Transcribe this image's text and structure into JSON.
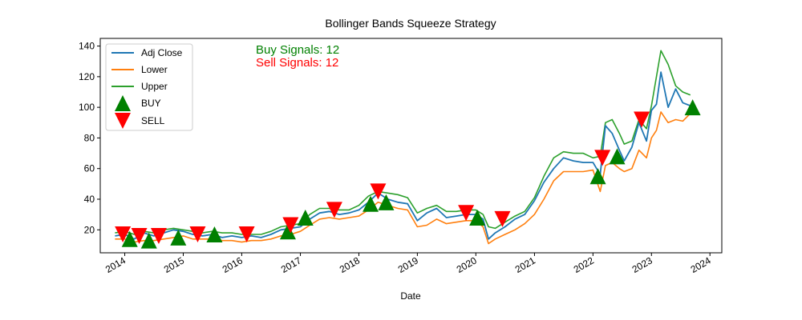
{
  "chart_data": {
    "type": "line",
    "title": "Bollinger Bands Squeeze Strategy",
    "xlabel": "Date",
    "ylabel": "",
    "xlim": [
      "2013-08-01",
      "2024-03-15"
    ],
    "ylim": [
      5,
      145
    ],
    "grid": false,
    "legend_position": "upper-left",
    "x_ticks": [
      "2014",
      "2015",
      "2016",
      "2017",
      "2018",
      "2019",
      "2020",
      "2021",
      "2022",
      "2023",
      "2024"
    ],
    "y_ticks": [
      20,
      40,
      60,
      80,
      100,
      120,
      140
    ],
    "colors": {
      "adj_close": "#1f77b4",
      "lower": "#ff7f0e",
      "upper": "#2ca02c",
      "buy": "#008000",
      "sell": "#ff0000"
    },
    "annotations": {
      "buy_text": "Buy Signals: 12",
      "sell_text": "Sell Signals: 12"
    },
    "legend": [
      "Adj Close",
      "Lower",
      "Upper",
      "BUY",
      "SELL"
    ],
    "series": [
      {
        "name": "Adj Close",
        "x": [
          "2013-11-01",
          "2014-01-01",
          "2014-03-01",
          "2014-05-01",
          "2014-07-01",
          "2014-09-01",
          "2014-11-01",
          "2015-01-01",
          "2015-03-01",
          "2015-05-01",
          "2015-07-01",
          "2015-09-01",
          "2015-11-01",
          "2016-01-01",
          "2016-03-01",
          "2016-05-01",
          "2016-07-01",
          "2016-09-01",
          "2016-11-01",
          "2017-01-01",
          "2017-03-01",
          "2017-05-01",
          "2017-07-01",
          "2017-09-01",
          "2017-11-01",
          "2018-01-01",
          "2018-03-01",
          "2018-05-01",
          "2018-07-01",
          "2018-09-01",
          "2018-11-01",
          "2019-01-01",
          "2019-03-01",
          "2019-05-01",
          "2019-07-01",
          "2019-09-01",
          "2019-11-01",
          "2020-01-01",
          "2020-02-15",
          "2020-03-20",
          "2020-05-01",
          "2020-07-01",
          "2020-09-01",
          "2020-11-01",
          "2021-01-01",
          "2021-03-01",
          "2021-05-01",
          "2021-07-01",
          "2021-09-01",
          "2021-11-01",
          "2022-01-01",
          "2022-02-15",
          "2022-03-20",
          "2022-05-01",
          "2022-06-15",
          "2022-07-15",
          "2022-09-01",
          "2022-10-15",
          "2022-12-01",
          "2023-01-01",
          "2023-02-01",
          "2023-03-01",
          "2023-04-15",
          "2023-06-01",
          "2023-07-15",
          "2023-09-01"
        ],
        "values": [
          16,
          17,
          14,
          18,
          16,
          18,
          20,
          19,
          17,
          16,
          17,
          15,
          16,
          15,
          16,
          15,
          17,
          20,
          21,
          22,
          27,
          31,
          32,
          30,
          31,
          33,
          38,
          44,
          40,
          38,
          37,
          26,
          31,
          34,
          28,
          29,
          30,
          30,
          27,
          14,
          18,
          22,
          27,
          30,
          39,
          51,
          60,
          67,
          65,
          64,
          64,
          56,
          88,
          83,
          72,
          65,
          74,
          90,
          78,
          98,
          102,
          123,
          100,
          112,
          103,
          101
        ]
      },
      {
        "name": "Lower",
        "x": [
          "2013-11-01",
          "2014-01-01",
          "2014-03-01",
          "2014-05-01",
          "2014-07-01",
          "2014-09-01",
          "2014-11-01",
          "2015-01-01",
          "2015-03-01",
          "2015-05-01",
          "2015-07-01",
          "2015-09-01",
          "2015-11-01",
          "2016-01-01",
          "2016-03-01",
          "2016-05-01",
          "2016-07-01",
          "2016-09-01",
          "2016-11-01",
          "2017-01-01",
          "2017-03-01",
          "2017-05-01",
          "2017-07-01",
          "2017-09-01",
          "2017-11-01",
          "2018-01-01",
          "2018-03-01",
          "2018-05-01",
          "2018-07-01",
          "2018-09-01",
          "2018-11-01",
          "2019-01-01",
          "2019-03-01",
          "2019-05-01",
          "2019-07-01",
          "2019-09-01",
          "2019-11-01",
          "2020-01-01",
          "2020-02-15",
          "2020-03-20",
          "2020-05-01",
          "2020-07-01",
          "2020-09-01",
          "2020-11-01",
          "2021-01-01",
          "2021-03-01",
          "2021-05-01",
          "2021-07-01",
          "2021-09-01",
          "2021-11-01",
          "2022-01-01",
          "2022-02-15",
          "2022-03-20",
          "2022-05-01",
          "2022-06-15",
          "2022-07-15",
          "2022-09-01",
          "2022-10-15",
          "2022-12-01",
          "2023-01-01",
          "2023-02-01",
          "2023-03-01",
          "2023-04-15",
          "2023-06-01",
          "2023-07-15",
          "2023-09-01"
        ],
        "values": [
          14,
          14,
          12,
          13,
          13,
          14,
          15,
          16,
          14,
          14,
          14,
          13,
          13,
          12,
          13,
          13,
          14,
          16,
          17,
          19,
          23,
          27,
          28,
          27,
          28,
          29,
          33,
          38,
          36,
          34,
          33,
          22,
          23,
          27,
          24,
          25,
          26,
          26,
          22,
          11,
          14,
          17,
          20,
          24,
          30,
          40,
          52,
          58,
          58,
          58,
          59,
          45,
          62,
          64,
          60,
          58,
          60,
          72,
          67,
          80,
          85,
          97,
          90,
          92,
          91,
          96
        ]
      },
      {
        "name": "Upper",
        "x": [
          "2013-11-01",
          "2014-01-01",
          "2014-03-01",
          "2014-05-01",
          "2014-07-01",
          "2014-09-01",
          "2014-11-01",
          "2015-01-01",
          "2015-03-01",
          "2015-05-01",
          "2015-07-01",
          "2015-09-01",
          "2015-11-01",
          "2016-01-01",
          "2016-03-01",
          "2016-05-01",
          "2016-07-01",
          "2016-09-01",
          "2016-11-01",
          "2017-01-01",
          "2017-03-01",
          "2017-05-01",
          "2017-07-01",
          "2017-09-01",
          "2017-11-01",
          "2018-01-01",
          "2018-03-01",
          "2018-05-01",
          "2018-07-01",
          "2018-09-01",
          "2018-11-01",
          "2019-01-01",
          "2019-03-01",
          "2019-05-01",
          "2019-07-01",
          "2019-09-01",
          "2019-11-01",
          "2020-01-01",
          "2020-02-15",
          "2020-03-20",
          "2020-05-01",
          "2020-07-01",
          "2020-09-01",
          "2020-11-01",
          "2021-01-01",
          "2021-03-01",
          "2021-05-01",
          "2021-07-01",
          "2021-09-01",
          "2021-11-01",
          "2022-01-01",
          "2022-02-15",
          "2022-03-20",
          "2022-05-01",
          "2022-06-15",
          "2022-07-15",
          "2022-09-01",
          "2022-10-15",
          "2022-12-01",
          "2023-01-01",
          "2023-02-01",
          "2023-03-01",
          "2023-04-15",
          "2023-06-01",
          "2023-07-15",
          "2023-09-01"
        ],
        "values": [
          18,
          19,
          17,
          19,
          18,
          20,
          21,
          20,
          19,
          18,
          19,
          18,
          18,
          17,
          17,
          17,
          19,
          22,
          23,
          24,
          30,
          34,
          34,
          33,
          33,
          36,
          42,
          45,
          44,
          43,
          41,
          31,
          34,
          36,
          32,
          32,
          33,
          33,
          30,
          22,
          21,
          25,
          29,
          32,
          41,
          55,
          67,
          71,
          70,
          70,
          67,
          68,
          90,
          92,
          83,
          76,
          78,
          92,
          86,
          101,
          120,
          137,
          128,
          114,
          110,
          108
        ]
      }
    ],
    "buy_signals": {
      "x": [
        "2014-02-01",
        "2014-06-01",
        "2014-12-01",
        "2015-07-15",
        "2016-10-15",
        "2017-02-01",
        "2018-03-15",
        "2018-06-20",
        "2020-01-10",
        "2022-02-01",
        "2022-06-01",
        "2023-09-15"
      ],
      "y": [
        14,
        13,
        15,
        17,
        19,
        28,
        37,
        38,
        28,
        55,
        68,
        100
      ]
    },
    "sell_signals": {
      "x": [
        "2013-12-20",
        "2014-04-01",
        "2014-08-01",
        "2015-04-01",
        "2016-02-01",
        "2016-11-01",
        "2017-08-01",
        "2018-05-01",
        "2019-11-01",
        "2020-06-15",
        "2022-03-01",
        "2022-11-01"
      ],
      "y": [
        17,
        16,
        16,
        17,
        17,
        23,
        33,
        45,
        31,
        27,
        67,
        92
      ]
    }
  }
}
